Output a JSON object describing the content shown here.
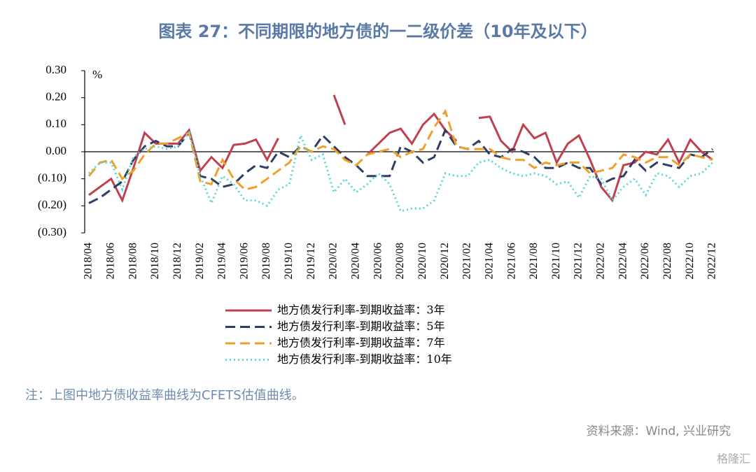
{
  "chart_data": {
    "type": "line",
    "title": "图表 27：不同期限的地方债的一二级价差（10年及以下）",
    "y_unit": "%",
    "note": "注：上图中地方债收益率曲线为CFETS估值曲线。",
    "source": "资料来源：Wind, 兴业研究",
    "watermark": "格隆汇",
    "negative_label_color": "#c00000",
    "categories": [
      "2018/04",
      null,
      "2018/06",
      null,
      "2018/08",
      null,
      "2018/10",
      null,
      "2018/12",
      null,
      "2019/02",
      null,
      "2019/04",
      null,
      "2019/06",
      null,
      "2019/08",
      null,
      "2019/10",
      null,
      "2019/12",
      null,
      "2020/02",
      null,
      "2020/04",
      null,
      "2020/06",
      null,
      "2020/08",
      null,
      "2020/10",
      null,
      "2020/12",
      null,
      "2021/02",
      null,
      "2021/04",
      null,
      "2021/06",
      null,
      "2021/08",
      null,
      "2021/10",
      null,
      "2021/12",
      null,
      "2022/02",
      null,
      "2022/04",
      null,
      "2022/06",
      null,
      "2022/08",
      null,
      "2022/10",
      null,
      "2022/12"
    ],
    "ylim": [
      -0.3,
      0.3
    ],
    "yticks": [
      {
        "value": 0.3,
        "label": "0.30"
      },
      {
        "value": 0.2,
        "label": "0.20"
      },
      {
        "value": 0.1,
        "label": "0.10"
      },
      {
        "value": 0,
        "label": "0.00"
      },
      {
        "value": -0.1,
        "label": "(0.10)"
      },
      {
        "value": -0.2,
        "label": "(0.20)"
      },
      {
        "value": -0.3,
        "label": "(0.30)"
      }
    ],
    "series": [
      {
        "name": "地方债发行利率-到期收益率：3年",
        "color": "#c0404f",
        "dash": "solid",
        "values": [
          -0.16,
          -0.13,
          -0.1,
          -0.18,
          -0.06,
          0.07,
          0.03,
          0.03,
          0.03,
          0.08,
          -0.07,
          -0.02,
          -0.06,
          0.025,
          0.03,
          0.045,
          -0.03,
          0.05,
          null,
          null,
          null,
          null,
          0.21,
          0.1,
          null,
          -0.01,
          0.03,
          0.07,
          0.085,
          0.03,
          0.1,
          0.14,
          0.08,
          0.04,
          null,
          0.125,
          0.13,
          0.04,
          0.0,
          0.1,
          0.05,
          0.07,
          -0.04,
          0.03,
          0.06,
          -0.03,
          -0.13,
          -0.18,
          -0.05,
          -0.04,
          0.0,
          -0.01,
          0.045,
          -0.04,
          0.045,
          0.0,
          -0.03
        ]
      },
      {
        "name": "地方债发行利率-到期收益率：5年",
        "color": "#2e3f66",
        "dash": "dashed",
        "values": [
          -0.19,
          -0.17,
          -0.14,
          -0.11,
          -0.03,
          0.02,
          0.04,
          0.02,
          0.02,
          0.07,
          -0.09,
          -0.1,
          -0.13,
          -0.12,
          -0.08,
          -0.05,
          -0.06,
          0.0,
          -0.02,
          0.02,
          0.0,
          0.06,
          0.02,
          -0.02,
          -0.05,
          -0.09,
          -0.09,
          -0.09,
          0.02,
          0.0,
          -0.04,
          -0.02,
          0.08,
          0.02,
          0.01,
          0.04,
          -0.01,
          -0.02,
          0.01,
          0.0,
          -0.02,
          -0.06,
          -0.06,
          -0.04,
          -0.06,
          -0.06,
          -0.12,
          -0.1,
          -0.09,
          -0.03,
          -0.07,
          -0.04,
          -0.05,
          -0.06,
          -0.01,
          -0.02,
          0.01
        ]
      },
      {
        "name": "地方债发行利率-到期收益率：7年",
        "color": "#f0a02a",
        "dash": "dashed",
        "values": [
          -0.09,
          -0.04,
          -0.03,
          -0.1,
          -0.07,
          -0.01,
          0.03,
          0.03,
          0.05,
          0.07,
          -0.11,
          -0.12,
          -0.03,
          -0.1,
          -0.14,
          -0.13,
          -0.1,
          -0.07,
          -0.04,
          0.02,
          0.0,
          0.02,
          0.01,
          -0.03,
          -0.05,
          -0.01,
          0.0,
          0.01,
          -0.02,
          0.0,
          0.01,
          0.09,
          0.15,
          0.02,
          0.01,
          0.01,
          0.01,
          -0.02,
          -0.03,
          -0.03,
          -0.06,
          -0.04,
          -0.05,
          -0.04,
          -0.04,
          -0.08,
          -0.07,
          -0.06,
          -0.01,
          -0.02,
          -0.04,
          -0.02,
          -0.02,
          -0.05,
          -0.01,
          -0.02,
          -0.03
        ]
      },
      {
        "name": "地方债发行利率-到期收益率：10年",
        "color": "#5fd6d6",
        "dash": "dotted",
        "values": [
          -0.08,
          -0.04,
          -0.04,
          -0.14,
          -0.02,
          0.01,
          0.02,
          0.01,
          0.02,
          0.07,
          -0.09,
          -0.19,
          -0.09,
          -0.12,
          -0.18,
          -0.18,
          -0.2,
          -0.14,
          -0.12,
          0.06,
          -0.03,
          -0.01,
          -0.15,
          -0.1,
          -0.15,
          -0.12,
          -0.08,
          -0.12,
          -0.22,
          -0.21,
          -0.21,
          -0.18,
          -0.08,
          -0.09,
          -0.09,
          -0.04,
          -0.03,
          -0.06,
          -0.08,
          -0.09,
          -0.08,
          -0.09,
          -0.12,
          -0.11,
          -0.17,
          -0.09,
          -0.1,
          -0.18,
          -0.13,
          -0.1,
          -0.16,
          -0.08,
          -0.09,
          -0.13,
          -0.09,
          -0.08,
          -0.04
        ]
      }
    ]
  }
}
